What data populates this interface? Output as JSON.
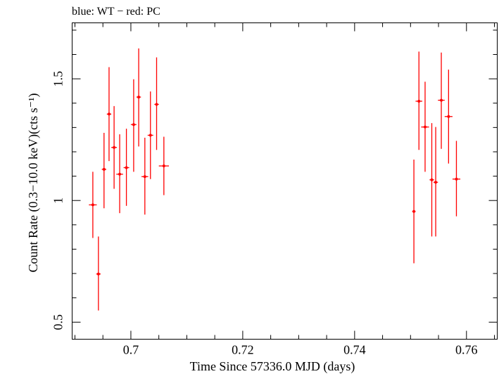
{
  "chart_data": {
    "type": "scatter",
    "title": "blue: WT − red: PC",
    "xlabel": "Time Since 57336.0 MJD (days)",
    "ylabel": "Count Rate (0.3−10.0 keV)(cts s⁻¹)",
    "xlim": [
      0.6895,
      0.7655
    ],
    "ylim": [
      0.43,
      1.73
    ],
    "xticks": [
      0.7,
      0.72,
      0.74,
      0.76
    ],
    "xtick_labels": [
      "0.7",
      "0.72",
      "0.74",
      "0.76"
    ],
    "yticks": [
      0.5,
      1.0,
      1.5
    ],
    "ytick_labels": [
      "0.5",
      "1",
      "1.5"
    ],
    "grid": false,
    "log_scale": false,
    "series": [
      {
        "color": "#ff0000",
        "points": [
          {
            "x": 0.6932,
            "y": 0.982,
            "ylo": 0.846,
            "yhi": 1.118,
            "xerr": 0.0007
          },
          {
            "x": 0.6942,
            "y": 0.698,
            "ylo": 0.548,
            "yhi": 0.852,
            "xerr": 0.0004
          },
          {
            "x": 0.6952,
            "y": 1.128,
            "ylo": 0.968,
            "yhi": 1.278,
            "xerr": 0.0004
          },
          {
            "x": 0.6961,
            "y": 1.355,
            "ylo": 1.162,
            "yhi": 1.548,
            "xerr": 0.0004
          },
          {
            "x": 0.697,
            "y": 1.218,
            "ylo": 1.048,
            "yhi": 1.388,
            "xerr": 0.0005
          },
          {
            "x": 0.698,
            "y": 1.108,
            "ylo": 0.948,
            "yhi": 1.272,
            "xerr": 0.0006
          },
          {
            "x": 0.6992,
            "y": 1.135,
            "ylo": 0.978,
            "yhi": 1.295,
            "xerr": 0.0005
          },
          {
            "x": 0.7005,
            "y": 1.312,
            "ylo": 1.118,
            "yhi": 1.498,
            "xerr": 0.0005
          },
          {
            "x": 0.7014,
            "y": 1.425,
            "ylo": 1.222,
            "yhi": 1.625,
            "xerr": 0.0004
          },
          {
            "x": 0.7025,
            "y": 1.098,
            "ylo": 0.942,
            "yhi": 1.258,
            "xerr": 0.0006
          },
          {
            "x": 0.7035,
            "y": 1.268,
            "ylo": 1.088,
            "yhi": 1.448,
            "xerr": 0.0005
          },
          {
            "x": 0.7046,
            "y": 1.395,
            "ylo": 1.208,
            "yhi": 1.588,
            "xerr": 0.0004
          },
          {
            "x": 0.7059,
            "y": 1.142,
            "ylo": 1.022,
            "yhi": 1.262,
            "xerr": 0.0009
          },
          {
            "x": 0.7506,
            "y": 0.955,
            "ylo": 0.742,
            "yhi": 1.168,
            "xerr": 0.0003
          },
          {
            "x": 0.7515,
            "y": 1.408,
            "ylo": 1.208,
            "yhi": 1.612,
            "xerr": 0.0006
          },
          {
            "x": 0.7526,
            "y": 1.302,
            "ylo": 1.118,
            "yhi": 1.488,
            "xerr": 0.0007
          },
          {
            "x": 0.7538,
            "y": 1.085,
            "ylo": 0.852,
            "yhi": 1.318,
            "xerr": 0.0004
          },
          {
            "x": 0.7545,
            "y": 1.075,
            "ylo": 0.852,
            "yhi": 1.302,
            "xerr": 0.0004
          },
          {
            "x": 0.7555,
            "y": 1.412,
            "ylo": 1.212,
            "yhi": 1.608,
            "xerr": 0.0006
          },
          {
            "x": 0.7568,
            "y": 1.345,
            "ylo": 1.152,
            "yhi": 1.538,
            "xerr": 0.0007
          },
          {
            "x": 0.7582,
            "y": 1.088,
            "ylo": 0.935,
            "yhi": 1.245,
            "xerr": 0.0007
          }
        ]
      }
    ]
  }
}
